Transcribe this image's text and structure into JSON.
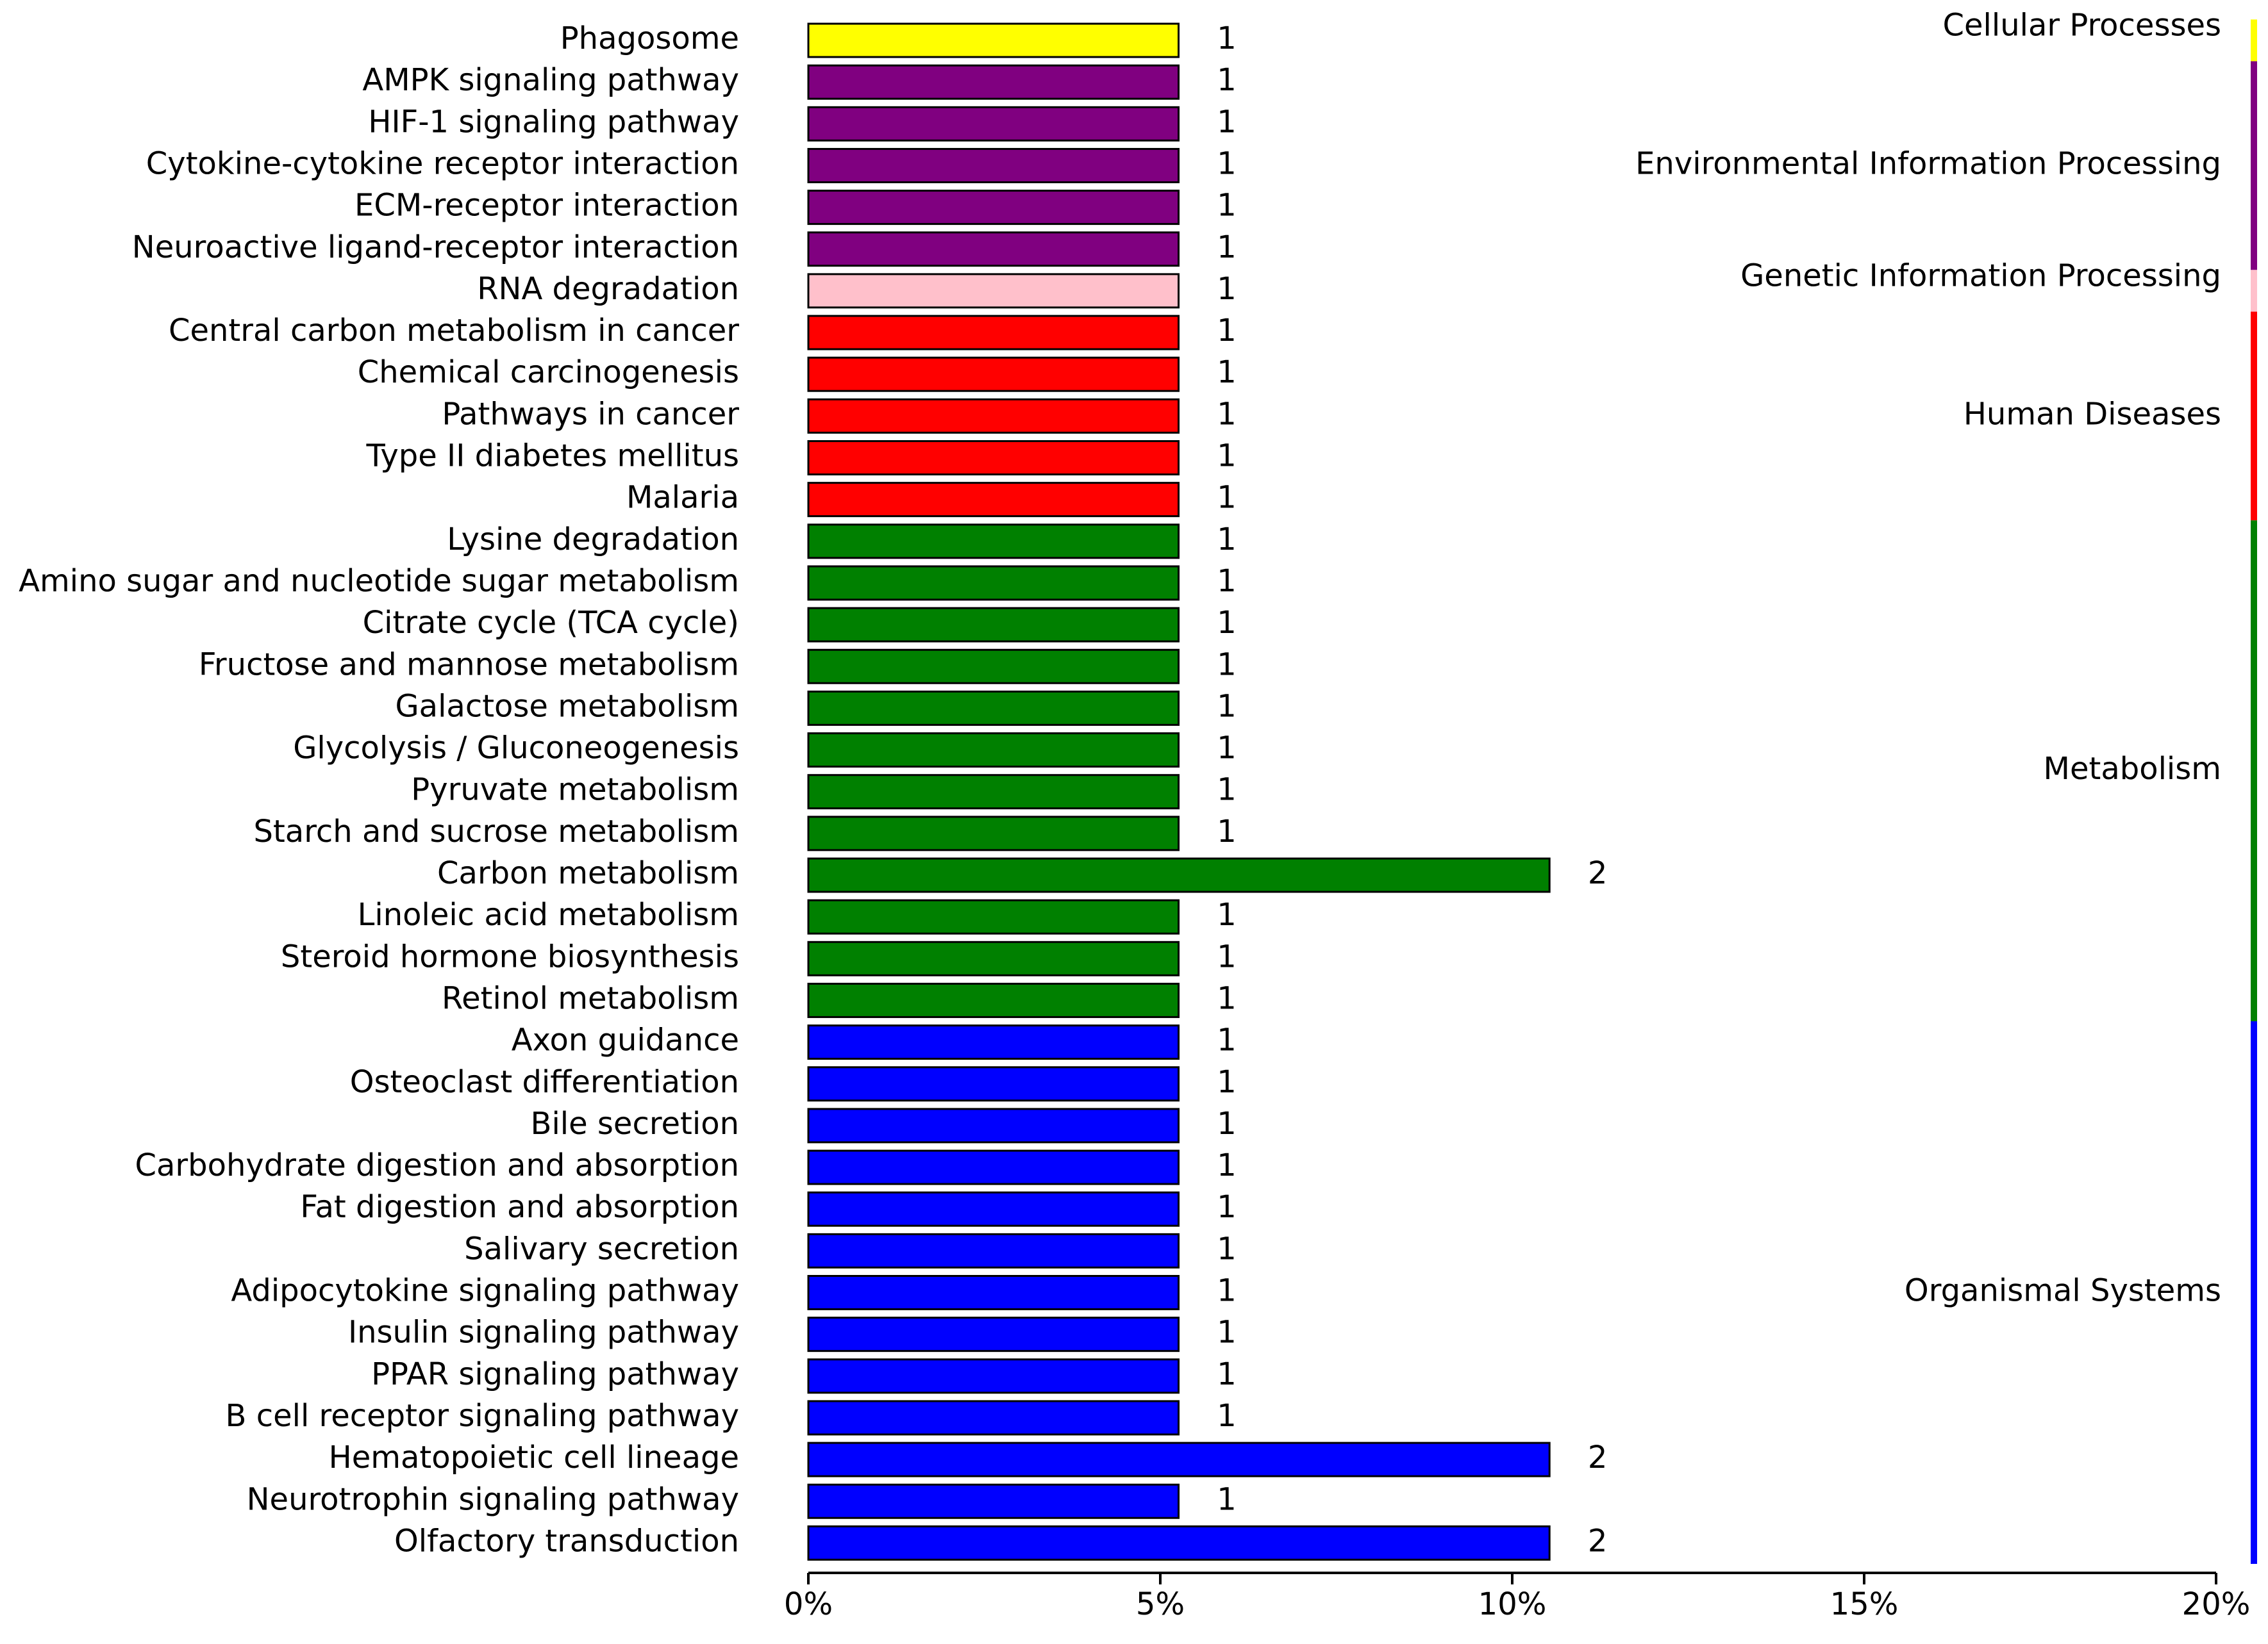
{
  "chart_data": {
    "type": "bar",
    "orientation": "horizontal",
    "xlim": [
      0,
      20
    ],
    "xticks": [
      "0%",
      "5%",
      "10%",
      "15%",
      "20%"
    ],
    "xtick_values": [
      0,
      5,
      10,
      15,
      20
    ],
    "grid": false,
    "categories": [
      {
        "label": "Phagosome",
        "percent": 5.26,
        "count": "1",
        "group": "Cellular Processes"
      },
      {
        "label": "AMPK signaling pathway",
        "percent": 5.26,
        "count": "1",
        "group": "Environmental Information Processing"
      },
      {
        "label": "HIF-1 signaling pathway",
        "percent": 5.26,
        "count": "1",
        "group": "Environmental Information Processing"
      },
      {
        "label": "Cytokine-cytokine receptor interaction",
        "percent": 5.26,
        "count": "1",
        "group": "Environmental Information Processing"
      },
      {
        "label": "ECM-receptor interaction",
        "percent": 5.26,
        "count": "1",
        "group": "Environmental Information Processing"
      },
      {
        "label": "Neuroactive ligand-receptor interaction",
        "percent": 5.26,
        "count": "1",
        "group": "Environmental Information Processing"
      },
      {
        "label": "RNA degradation",
        "percent": 5.26,
        "count": "1",
        "group": "Genetic Information Processing"
      },
      {
        "label": "Central carbon metabolism in cancer",
        "percent": 5.26,
        "count": "1",
        "group": "Human Diseases"
      },
      {
        "label": "Chemical carcinogenesis",
        "percent": 5.26,
        "count": "1",
        "group": "Human Diseases"
      },
      {
        "label": "Pathways in cancer",
        "percent": 5.26,
        "count": "1",
        "group": "Human Diseases"
      },
      {
        "label": "Type II diabetes mellitus",
        "percent": 5.26,
        "count": "1",
        "group": "Human Diseases"
      },
      {
        "label": "Malaria",
        "percent": 5.26,
        "count": "1",
        "group": "Human Diseases"
      },
      {
        "label": "Lysine degradation",
        "percent": 5.26,
        "count": "1",
        "group": "Metabolism"
      },
      {
        "label": "Amino sugar and nucleotide sugar metabolism",
        "percent": 5.26,
        "count": "1",
        "group": "Metabolism"
      },
      {
        "label": "Citrate cycle (TCA cycle)",
        "percent": 5.26,
        "count": "1",
        "group": "Metabolism"
      },
      {
        "label": "Fructose and mannose metabolism",
        "percent": 5.26,
        "count": "1",
        "group": "Metabolism"
      },
      {
        "label": "Galactose metabolism",
        "percent": 5.26,
        "count": "1",
        "group": "Metabolism"
      },
      {
        "label": "Glycolysis / Gluconeogenesis",
        "percent": 5.26,
        "count": "1",
        "group": "Metabolism"
      },
      {
        "label": "Pyruvate metabolism",
        "percent": 5.26,
        "count": "1",
        "group": "Metabolism"
      },
      {
        "label": "Starch and sucrose metabolism",
        "percent": 5.26,
        "count": "1",
        "group": "Metabolism"
      },
      {
        "label": "Carbon metabolism",
        "percent": 10.53,
        "count": "2",
        "group": "Metabolism"
      },
      {
        "label": "Linoleic acid metabolism",
        "percent": 5.26,
        "count": "1",
        "group": "Metabolism"
      },
      {
        "label": "Steroid hormone biosynthesis",
        "percent": 5.26,
        "count": "1",
        "group": "Metabolism"
      },
      {
        "label": "Retinol metabolism",
        "percent": 5.26,
        "count": "1",
        "group": "Metabolism"
      },
      {
        "label": "Axon guidance",
        "percent": 5.26,
        "count": "1",
        "group": "Organismal Systems"
      },
      {
        "label": "Osteoclast differentiation",
        "percent": 5.26,
        "count": "1",
        "group": "Organismal Systems"
      },
      {
        "label": "Bile secretion",
        "percent": 5.26,
        "count": "1",
        "group": "Organismal Systems"
      },
      {
        "label": "Carbohydrate digestion and absorption",
        "percent": 5.26,
        "count": "1",
        "group": "Organismal Systems"
      },
      {
        "label": "Fat digestion and absorption",
        "percent": 5.26,
        "count": "1",
        "group": "Organismal Systems"
      },
      {
        "label": "Salivary secretion",
        "percent": 5.26,
        "count": "1",
        "group": "Organismal Systems"
      },
      {
        "label": "Adipocytokine signaling pathway",
        "percent": 5.26,
        "count": "1",
        "group": "Organismal Systems"
      },
      {
        "label": "Insulin signaling pathway",
        "percent": 5.26,
        "count": "1",
        "group": "Organismal Systems"
      },
      {
        "label": "PPAR signaling pathway",
        "percent": 5.26,
        "count": "1",
        "group": "Organismal Systems"
      },
      {
        "label": "B cell receptor signaling pathway",
        "percent": 5.26,
        "count": "1",
        "group": "Organismal Systems"
      },
      {
        "label": "Hematopoietic cell lineage",
        "percent": 10.53,
        "count": "2",
        "group": "Organismal Systems"
      },
      {
        "label": "Neurotrophin signaling pathway",
        "percent": 5.26,
        "count": "1",
        "group": "Organismal Systems"
      },
      {
        "label": "Olfactory transduction",
        "percent": 10.53,
        "count": "2",
        "group": "Organismal Systems"
      }
    ],
    "groups": [
      {
        "name": "Cellular Processes",
        "color": "#ffff00"
      },
      {
        "name": "Environmental Information Processing",
        "color": "#800080"
      },
      {
        "name": "Genetic Information Processing",
        "color": "#ffc0cb"
      },
      {
        "name": "Human Diseases",
        "color": "#ff0000"
      },
      {
        "name": "Metabolism",
        "color": "#008000"
      },
      {
        "name": "Organismal Systems",
        "color": "#0000ff"
      }
    ]
  }
}
